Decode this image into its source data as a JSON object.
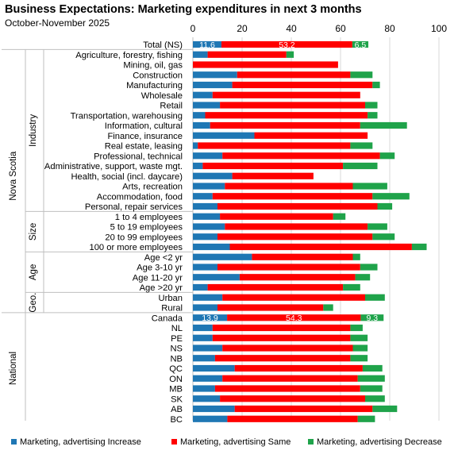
{
  "page": {
    "title": "Business Expectations: Marketing expenditures  in next 3 months",
    "subtitle": "October-November 2025"
  },
  "colors": {
    "increase": "#1f77b4",
    "same": "#ff0000",
    "decrease": "#1fa34a",
    "grid": "#d9d9d9",
    "separator": "#bfbfbf",
    "label_text_on_bar": "#ffffff"
  },
  "chart_data": {
    "type": "bar",
    "orientation": "horizontal",
    "stacked": true,
    "title": "Business Expectations: Marketing expenditures  in next 3 months",
    "subtitle": "October-November 2025",
    "xlim": [
      0,
      100
    ],
    "xticks": [
      0,
      20,
      40,
      60,
      80,
      100
    ],
    "grid": true,
    "legend_position": "bottom",
    "series": [
      {
        "name": "Marketing, advertising Increase",
        "key": "increase"
      },
      {
        "name": "Marketing, advertising Same",
        "key": "same"
      },
      {
        "name": "Marketing, advertising Decrease",
        "key": "decrease"
      }
    ],
    "groups": [
      {
        "name": "Nova Scotia",
        "start": 0,
        "end": 26
      },
      {
        "name": "National",
        "start": 27,
        "end": 37
      }
    ],
    "subgroups": [
      {
        "name": "Industry",
        "start": 1,
        "end": 16
      },
      {
        "name": "Size",
        "start": 17,
        "end": 20
      },
      {
        "name": "Age",
        "start": 21,
        "end": 24
      },
      {
        "name": "Geo.",
        "start": 25,
        "end": 26
      }
    ],
    "rows": [
      {
        "label": "Total (NS)",
        "values": [
          11.6,
          53.2,
          6.5
        ],
        "labels": [
          "11.6",
          "53.2",
          "6.5"
        ]
      },
      {
        "label": "Agriculture, forestry, fishing",
        "values": [
          6,
          32,
          3
        ]
      },
      {
        "label": "Mining, oil, gas",
        "values": [
          0,
          59,
          0
        ]
      },
      {
        "label": "Construction",
        "values": [
          18,
          46,
          9
        ]
      },
      {
        "label": "Manufacturing",
        "values": [
          16,
          57,
          3
        ]
      },
      {
        "label": "Wholesale",
        "values": [
          8,
          60,
          0
        ]
      },
      {
        "label": "Retail",
        "values": [
          11,
          59,
          5
        ]
      },
      {
        "label": "Transportation, warehousing",
        "values": [
          5,
          66,
          4
        ]
      },
      {
        "label": "Information, cultural",
        "values": [
          7,
          61,
          19
        ]
      },
      {
        "label": "Finance, insurance",
        "values": [
          25,
          46,
          0
        ]
      },
      {
        "label": "Real estate, leasing",
        "values": [
          2,
          62,
          9
        ]
      },
      {
        "label": "Professional, technical",
        "values": [
          12,
          64,
          6
        ]
      },
      {
        "label": "Administrative, support, waste mgt.",
        "values": [
          4,
          57,
          14
        ]
      },
      {
        "label": "Health, social (incl. daycare)",
        "values": [
          16,
          33,
          0
        ]
      },
      {
        "label": "Arts, recreation",
        "values": [
          13,
          52,
          14
        ]
      },
      {
        "label": "Accommodation, food",
        "values": [
          8,
          65,
          15
        ]
      },
      {
        "label": "Personal, repair services",
        "values": [
          10,
          65,
          6
        ]
      },
      {
        "label": "1 to 4 employees",
        "values": [
          11,
          46,
          5
        ]
      },
      {
        "label": "5 to 19 employees",
        "values": [
          13,
          58,
          8
        ]
      },
      {
        "label": "20 to 99 employees",
        "values": [
          10,
          63,
          9
        ]
      },
      {
        "label": "100 or more employees",
        "values": [
          15,
          74,
          6
        ]
      },
      {
        "label": "Age <2 yr",
        "values": [
          24,
          41,
          3
        ]
      },
      {
        "label": "Age 3-10 yr",
        "values": [
          10,
          58,
          7
        ]
      },
      {
        "label": "Age 11-20 yr",
        "values": [
          19,
          47,
          6
        ]
      },
      {
        "label": "Age >20 yr",
        "values": [
          6,
          55,
          7
        ]
      },
      {
        "label": "Urban",
        "values": [
          12,
          58,
          8
        ]
      },
      {
        "label": "Rural",
        "values": [
          10,
          43,
          4
        ]
      },
      {
        "label": "Canada",
        "values": [
          13.9,
          54.3,
          9.3
        ],
        "labels": [
          "13.9",
          "54.3",
          "9.3"
        ]
      },
      {
        "label": "NL",
        "values": [
          8,
          56,
          5
        ]
      },
      {
        "label": "PE",
        "values": [
          8,
          56,
          7
        ]
      },
      {
        "label": "NS",
        "values": [
          12,
          53,
          6
        ]
      },
      {
        "label": "NB",
        "values": [
          9,
          55,
          7
        ]
      },
      {
        "label": "QC",
        "values": [
          17,
          52,
          8
        ]
      },
      {
        "label": "ON",
        "values": [
          12,
          55,
          11
        ]
      },
      {
        "label": "MB",
        "values": [
          9,
          59,
          9
        ]
      },
      {
        "label": "SK",
        "values": [
          11,
          59,
          8
        ]
      },
      {
        "label": "AB",
        "values": [
          17,
          56,
          10
        ]
      },
      {
        "label": "BC",
        "values": [
          14,
          53,
          7
        ]
      }
    ]
  },
  "legend": {
    "items": [
      {
        "label": "Marketing, advertising Increase",
        "key": "increase"
      },
      {
        "label": "Marketing, advertising Same",
        "key": "same"
      },
      {
        "label": "Marketing, advertising Decrease",
        "key": "decrease"
      }
    ]
  }
}
